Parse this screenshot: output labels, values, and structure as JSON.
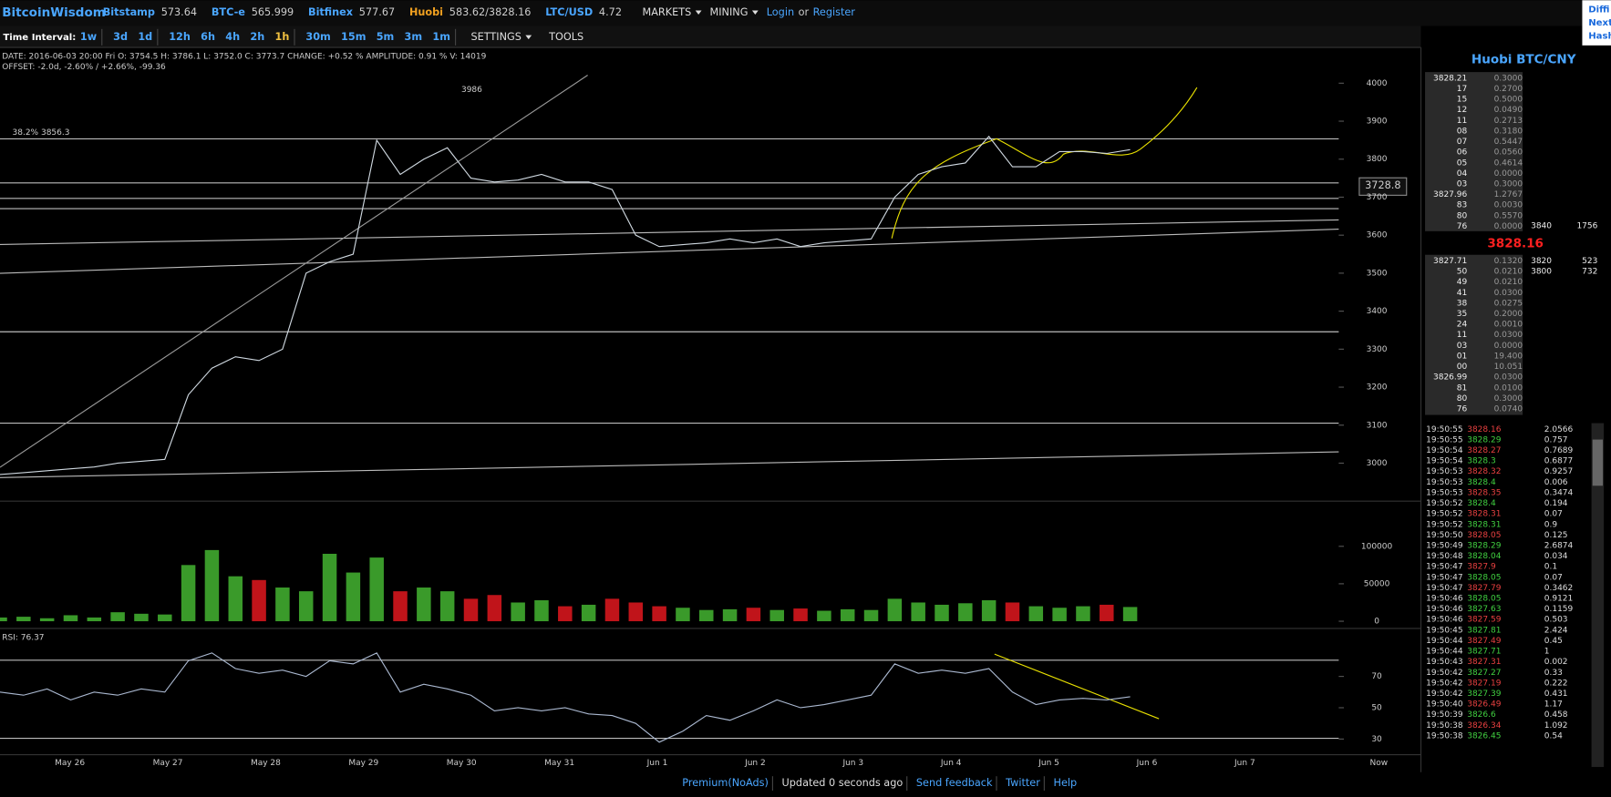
{
  "header": {
    "brand": "BitcoinWisdom",
    "markets": [
      {
        "name": "Bitstamp",
        "price": "573.64"
      },
      {
        "name": "BTC-e",
        "price": "565.999"
      },
      {
        "name": "Bitfinex",
        "price": "577.67"
      },
      {
        "name": "Huobi",
        "price": "583.62/3828.16"
      },
      {
        "name": "LTC/USD",
        "price": "4.72"
      }
    ],
    "menus": [
      "MARKETS",
      "MINING"
    ],
    "login": "Login",
    "or": "or",
    "register": "Register",
    "side": [
      "Diffi",
      "Next",
      "Hash"
    ]
  },
  "toolbar": {
    "label": "Time Interval:",
    "intervals": [
      "1w",
      "3d",
      "1d",
      "12h",
      "6h",
      "4h",
      "2h",
      "1h",
      "30m",
      "15m",
      "5m",
      "3m",
      "1m"
    ],
    "settings": "SETTINGS",
    "tools": "TOOLS"
  },
  "info": {
    "line1": "DATE: 2016-06-03 20:00 Fri    O: 3754.5    H: 3786.1    L: 3752.0    C: 3773.7    CHANGE: +0.52 %    AMPLITUDE: 0.91 %    V: 14019",
    "line2": "OFFSET: -2.0d, -2.60% / +2.66%, -99.36",
    "fib": "38.2% 3856.3",
    "high": "3986",
    "cursor": "3728.8",
    "rsi_label": "RSI: 76.37"
  },
  "chart_data": [
    {
      "type": "line",
      "name": "price",
      "color": "#cfd8e0",
      "ylim": [
        2900,
        4040
      ],
      "yticks": [
        3000,
        3100,
        3200,
        3300,
        3400,
        3500,
        3600,
        3700,
        3800,
        3900,
        4000
      ],
      "values": [
        2970,
        2975,
        2980,
        2985,
        2990,
        3000,
        3005,
        3010,
        3180,
        3250,
        3280,
        3270,
        3300,
        3500,
        3530,
        3550,
        3850,
        3760,
        3800,
        3830,
        3750,
        3740,
        3745,
        3760,
        3740,
        3740,
        3720,
        3600,
        3570,
        3575,
        3580,
        3590,
        3580,
        3590,
        3570,
        3580,
        3585,
        3590,
        3700,
        3760,
        3780,
        3790,
        3860,
        3780,
        3780,
        3820,
        3820,
        3815,
        3825
      ],
      "date_labels": [
        "May 26",
        "May 27",
        "May 28",
        "May 29",
        "May 30",
        "May 31",
        "Jun 1",
        "Jun 2",
        "Jun 3",
        "Jun 4",
        "Jun 5",
        "Jun 6",
        "Jun 7"
      ],
      "now_label": "Now"
    },
    {
      "type": "bar",
      "name": "volume",
      "up_color": "#3a9a2a",
      "down_color": "#c0141a",
      "ylim": [
        0,
        150000
      ],
      "yticks": [
        0,
        50000,
        100000
      ],
      "values": [
        5000,
        6000,
        4000,
        8000,
        5000,
        12000,
        10000,
        9000,
        75000,
        95000,
        60000,
        55000,
        45000,
        40000,
        90000,
        65000,
        85000,
        40000,
        45000,
        40000,
        30000,
        35000,
        25000,
        28000,
        20000,
        22000,
        30000,
        25000,
        20000,
        18000,
        15000,
        16000,
        18000,
        15000,
        17000,
        14000,
        16000,
        15000,
        30000,
        25000,
        22000,
        24000,
        28000,
        25000,
        20000,
        18000,
        20000,
        22000,
        19000
      ]
    },
    {
      "type": "line",
      "name": "rsi",
      "color": "#aab8d0",
      "ylim": [
        20,
        100
      ],
      "yticks": [
        30,
        50,
        70
      ],
      "values": [
        60,
        58,
        62,
        55,
        60,
        58,
        62,
        60,
        80,
        85,
        75,
        72,
        74,
        70,
        80,
        78,
        85,
        60,
        65,
        62,
        58,
        48,
        50,
        48,
        50,
        46,
        45,
        40,
        28,
        35,
        45,
        42,
        48,
        55,
        50,
        52,
        55,
        58,
        78,
        72,
        74,
        72,
        75,
        60,
        52,
        55,
        56,
        55,
        57
      ]
    }
  ],
  "orderbook": {
    "title": "Huobi BTC/CNY",
    "last": "3828.16",
    "asks": [
      [
        "3828.21",
        "0.3000"
      ],
      [
        "17",
        "0.2700"
      ],
      [
        "15",
        "0.5000"
      ],
      [
        "12",
        "0.0490"
      ],
      [
        "11",
        "0.2713"
      ],
      [
        "08",
        "0.3180"
      ],
      [
        "07",
        "0.5447"
      ],
      [
        "06",
        "0.0560"
      ],
      [
        "05",
        "0.4614"
      ],
      [
        "04",
        "0.0000"
      ],
      [
        "03",
        "0.3000"
      ],
      [
        "3827.96",
        "1.2767"
      ],
      [
        "83",
        "0.0030"
      ],
      [
        "80",
        "0.5570"
      ],
      [
        "76",
        "0.0000"
      ]
    ],
    "bids": [
      [
        "3827.71",
        "0.1320"
      ],
      [
        "50",
        "0.0210"
      ],
      [
        "49",
        "0.0210"
      ],
      [
        "41",
        "0.0300"
      ],
      [
        "38",
        "0.0275"
      ],
      [
        "35",
        "0.2000"
      ],
      [
        "24",
        "0.0010"
      ],
      [
        "11",
        "0.0300"
      ],
      [
        "03",
        "0.0000"
      ],
      [
        "01",
        "19.400"
      ],
      [
        "00",
        "10.051"
      ],
      [
        "3826.99",
        "0.0300"
      ],
      [
        "81",
        "0.0100"
      ],
      [
        "80",
        "0.3000"
      ],
      [
        "76",
        "0.0740"
      ]
    ],
    "depth": [
      [
        "3840",
        "1756"
      ],
      [
        "3820",
        "523"
      ],
      [
        "3800",
        "732"
      ]
    ]
  },
  "trades": [
    {
      "time": "19:50:55",
      "price": "3828.16",
      "amount": "2.0566",
      "color": "#e84040"
    },
    {
      "time": "19:50:55",
      "price": "3828.29",
      "amount": "0.757",
      "color": "#40d040"
    },
    {
      "time": "19:50:54",
      "price": "3828.27",
      "amount": "0.7689",
      "color": "#e84040"
    },
    {
      "time": "19:50:54",
      "price": "3828.3",
      "amount": "0.6877",
      "color": "#40d040"
    },
    {
      "time": "19:50:53",
      "price": "3828.32",
      "amount": "0.9257",
      "color": "#e84040"
    },
    {
      "time": "19:50:53",
      "price": "3828.4",
      "amount": "0.006",
      "color": "#40d040"
    },
    {
      "time": "19:50:53",
      "price": "3828.35",
      "amount": "0.3474",
      "color": "#e84040"
    },
    {
      "time": "19:50:52",
      "price": "3828.4",
      "amount": "0.194",
      "color": "#40d040"
    },
    {
      "time": "19:50:52",
      "price": "3828.31",
      "amount": "0.07",
      "color": "#e84040"
    },
    {
      "time": "19:50:52",
      "price": "3828.31",
      "amount": "0.9",
      "color": "#40d040"
    },
    {
      "time": "19:50:50",
      "price": "3828.05",
      "amount": "0.125",
      "color": "#e84040"
    },
    {
      "time": "19:50:49",
      "price": "3828.29",
      "amount": "2.6874",
      "color": "#40d040"
    },
    {
      "time": "19:50:48",
      "price": "3828.04",
      "amount": "0.034",
      "color": "#40d040"
    },
    {
      "time": "19:50:47",
      "price": "3827.9",
      "amount": "0.1",
      "color": "#e84040"
    },
    {
      "time": "19:50:47",
      "price": "3828.05",
      "amount": "0.07",
      "color": "#40d040"
    },
    {
      "time": "19:50:47",
      "price": "3827.79",
      "amount": "0.3462",
      "color": "#e84040"
    },
    {
      "time": "19:50:46",
      "price": "3828.05",
      "amount": "0.9121",
      "color": "#40d040"
    },
    {
      "time": "19:50:46",
      "price": "3827.63",
      "amount": "0.1159",
      "color": "#40d040"
    },
    {
      "time": "19:50:46",
      "price": "3827.59",
      "amount": "0.503",
      "color": "#e84040"
    },
    {
      "time": "19:50:45",
      "price": "3827.81",
      "amount": "2.424",
      "color": "#40d040"
    },
    {
      "time": "19:50:44",
      "price": "3827.49",
      "amount": "0.45",
      "color": "#e84040"
    },
    {
      "time": "19:50:44",
      "price": "3827.71",
      "amount": "1",
      "color": "#40d040"
    },
    {
      "time": "19:50:43",
      "price": "3827.31",
      "amount": "0.002",
      "color": "#e84040"
    },
    {
      "time": "19:50:42",
      "price": "3827.27",
      "amount": "0.33",
      "color": "#40d040"
    },
    {
      "time": "19:50:42",
      "price": "3827.19",
      "amount": "0.222",
      "color": "#e84040"
    },
    {
      "time": "19:50:42",
      "price": "3827.39",
      "amount": "0.431",
      "color": "#40d040"
    },
    {
      "time": "19:50:40",
      "price": "3826.49",
      "amount": "1.17",
      "color": "#e84040"
    },
    {
      "time": "19:50:39",
      "price": "3826.6",
      "amount": "0.458",
      "color": "#40d040"
    },
    {
      "time": "19:50:38",
      "price": "3826.34",
      "amount": "1.092",
      "color": "#e84040"
    },
    {
      "time": "19:50:38",
      "price": "3826.45",
      "amount": "0.54",
      "color": "#40d040"
    }
  ],
  "footer": [
    "Premium(NoAds)",
    "Updated 0 seconds ago",
    "Send feedback",
    "Twitter",
    "Help"
  ]
}
